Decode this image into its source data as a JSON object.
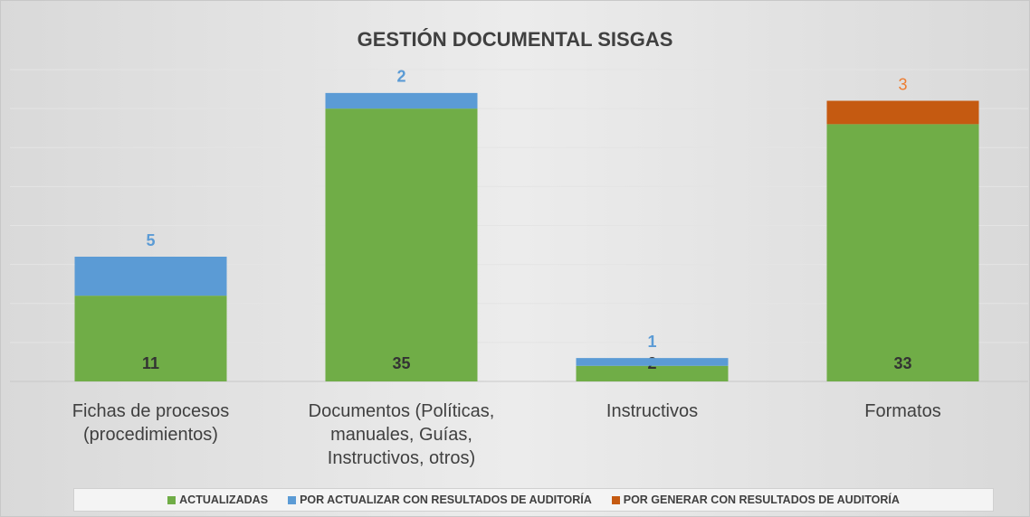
{
  "chart_data": {
    "type": "stacked_bar",
    "title": "GESTIÓN DOCUMENTAL SISGAS",
    "categories": [
      "Fichas de procesos (procedimientos)",
      "Documentos (Políticas, manuales, Guías, Instructivos, otros)",
      "Instructivos",
      "Formatos"
    ],
    "series": [
      {
        "name": "ACTUALIZADAS",
        "color": "#70ad47",
        "values": [
          11,
          35,
          2,
          33
        ]
      },
      {
        "name": "POR ACTUALIZAR CON RESULTADOS DE AUDITORÍA",
        "color": "#5b9bd5",
        "values": [
          5,
          2,
          1,
          null
        ]
      },
      {
        "name": "POR GENERAR CON RESULTADOS DE AUDITORÍA",
        "color": "#c55a11",
        "values": [
          null,
          null,
          null,
          3
        ]
      }
    ],
    "ylim": [
      0,
      40
    ],
    "yticks": [
      0,
      5,
      10,
      15,
      20,
      25,
      30,
      35,
      40
    ],
    "grid": true,
    "legend": "bottom"
  }
}
